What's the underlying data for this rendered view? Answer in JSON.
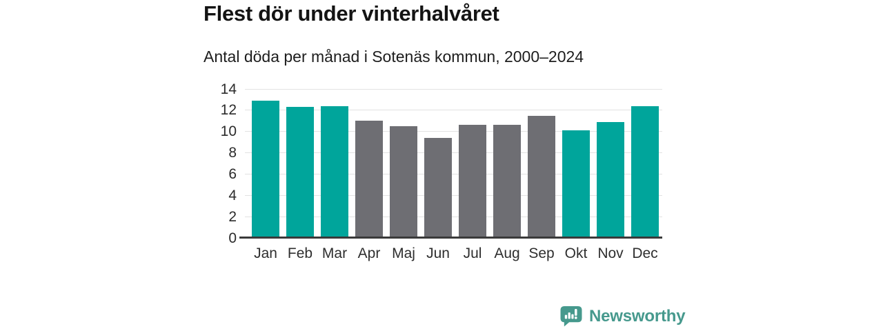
{
  "header": {
    "title": "Flest dör under vinterhalvåret",
    "subtitle": "Antal döda per månad i Sotenäs kommun, 2000–2024"
  },
  "chart_data": {
    "type": "bar",
    "title": "Flest dör under vinterhalvåret",
    "subtitle": "Antal döda per månad i Sotenäs kommun, 2000–2024",
    "categories": [
      "Jan",
      "Feb",
      "Mar",
      "Apr",
      "Maj",
      "Jun",
      "Jul",
      "Aug",
      "Sep",
      "Okt",
      "Nov",
      "Dec"
    ],
    "values": [
      12.9,
      12.3,
      12.4,
      11.0,
      10.5,
      9.4,
      10.6,
      10.6,
      11.5,
      10.1,
      10.9,
      12.4
    ],
    "bar_colors": [
      "teal",
      "teal",
      "teal",
      "gray",
      "gray",
      "gray",
      "gray",
      "gray",
      "gray",
      "teal",
      "teal",
      "teal"
    ],
    "colors": {
      "teal": "#00A59B",
      "gray": "#6E6E73"
    },
    "xlabel": "",
    "ylabel": "",
    "ylim": [
      0,
      14
    ],
    "yticks": [
      0,
      2,
      4,
      6,
      8,
      10,
      12,
      14
    ],
    "grid": true,
    "legend": "none",
    "gridline_color": "#e2e2e2",
    "axis_color": "#3a3a3a"
  },
  "footer": {
    "brand": "Newsworthy",
    "logo_color": "#46998D"
  }
}
